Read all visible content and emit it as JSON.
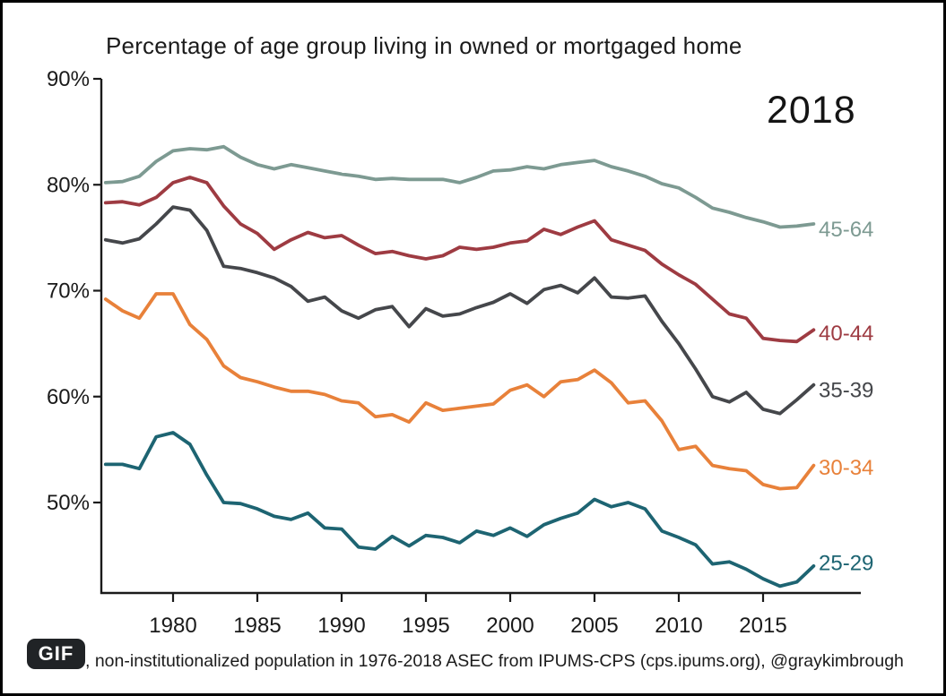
{
  "chart": {
    "title": "Percentage of age group living in owned or mortgaged home",
    "year_label": "2018"
  },
  "footer": {
    "badge": "GIF",
    "caption": ", non-institutionalized population in 1976-2018 ASEC from IPUMS-CPS (cps.ipums.org), @graykimbrough"
  },
  "colors": {
    "background": "#ffffff",
    "border": "#000000",
    "axis": "#1a1a1a",
    "badge_bg": "#202326",
    "badge_text": "#ffffff"
  },
  "chart_data": {
    "type": "line",
    "title": "Percentage of age group living in owned or mortgaged home",
    "xlabel": "",
    "ylabel": "",
    "x_start": 1976,
    "x_end": 2018,
    "x_ticks": [
      1980,
      1985,
      1990,
      1995,
      2000,
      2005,
      2010,
      2015
    ],
    "y_ticks": [
      {
        "label": "90%",
        "value": 90
      },
      {
        "label": "80%",
        "value": 80
      },
      {
        "label": "70%",
        "value": 70
      },
      {
        "label": "60%",
        "value": 60
      },
      {
        "label": "50%",
        "value": 50
      }
    ],
    "ylim": [
      41.4,
      90
    ],
    "grid": false,
    "legend_position": "right-end-labels",
    "annotation_year": "2018",
    "series": [
      {
        "name": "45-64",
        "color": "#7D9A92",
        "label_y": 75.8,
        "values": [
          80.2,
          80.3,
          80.8,
          82.2,
          83.2,
          83.4,
          83.3,
          83.6,
          82.6,
          81.9,
          81.5,
          81.9,
          81.6,
          81.3,
          81.0,
          80.8,
          80.5,
          80.6,
          80.5,
          80.5,
          80.5,
          80.2,
          80.7,
          81.3,
          81.4,
          81.7,
          81.5,
          81.9,
          82.1,
          82.3,
          81.7,
          81.3,
          80.8,
          80.1,
          79.7,
          78.8,
          77.8,
          77.4,
          76.9,
          76.5,
          76.0,
          76.1,
          76.3
        ]
      },
      {
        "name": "40-44",
        "color": "#9E3B42",
        "label_y": 66.0,
        "values": [
          78.3,
          78.4,
          78.1,
          78.8,
          80.2,
          80.7,
          80.2,
          78.0,
          76.3,
          75.4,
          73.9,
          74.8,
          75.5,
          75.0,
          75.2,
          74.3,
          73.5,
          73.7,
          73.3,
          73.0,
          73.3,
          74.1,
          73.9,
          74.1,
          74.5,
          74.7,
          75.8,
          75.3,
          76.0,
          76.6,
          74.8,
          74.3,
          73.8,
          72.5,
          71.5,
          70.6,
          69.2,
          67.8,
          67.4,
          65.5,
          65.3,
          65.2,
          66.3
        ]
      },
      {
        "name": "35-39",
        "color": "#45474B",
        "label_y": 60.6,
        "values": [
          74.8,
          74.5,
          74.9,
          76.3,
          77.9,
          77.6,
          75.7,
          72.3,
          72.1,
          71.7,
          71.2,
          70.4,
          69.0,
          69.4,
          68.1,
          67.4,
          68.2,
          68.5,
          66.6,
          68.3,
          67.6,
          67.8,
          68.4,
          68.9,
          69.7,
          68.8,
          70.1,
          70.5,
          69.8,
          71.2,
          69.4,
          69.3,
          69.5,
          67.1,
          65.0,
          62.6,
          60.0,
          59.5,
          60.4,
          58.8,
          58.4,
          59.7,
          61.1
        ]
      },
      {
        "name": "30-34",
        "color": "#E8813A",
        "label_y": 53.3,
        "values": [
          69.2,
          68.1,
          67.4,
          69.7,
          69.7,
          66.8,
          65.4,
          62.9,
          61.8,
          61.4,
          60.9,
          60.5,
          60.5,
          60.2,
          59.6,
          59.4,
          58.1,
          58.3,
          57.6,
          59.4,
          58.7,
          58.9,
          59.1,
          59.3,
          60.6,
          61.1,
          60.0,
          61.4,
          61.6,
          62.5,
          61.3,
          59.4,
          59.6,
          57.7,
          55.0,
          55.3,
          53.5,
          53.2,
          53.0,
          51.7,
          51.3,
          51.4,
          53.5
        ]
      },
      {
        "name": "25-29",
        "color": "#1D6472",
        "label_y": 44.3,
        "values": [
          53.6,
          53.6,
          53.2,
          56.2,
          56.6,
          55.5,
          52.6,
          50.0,
          49.9,
          49.4,
          48.7,
          48.4,
          49.0,
          47.6,
          47.5,
          45.8,
          45.6,
          46.8,
          45.9,
          46.9,
          46.7,
          46.2,
          47.3,
          46.9,
          47.6,
          46.8,
          47.9,
          48.5,
          49.0,
          50.3,
          49.6,
          50.0,
          49.4,
          47.3,
          46.7,
          46.0,
          44.2,
          44.4,
          43.7,
          42.8,
          42.1,
          42.5,
          44.0
        ]
      }
    ]
  }
}
